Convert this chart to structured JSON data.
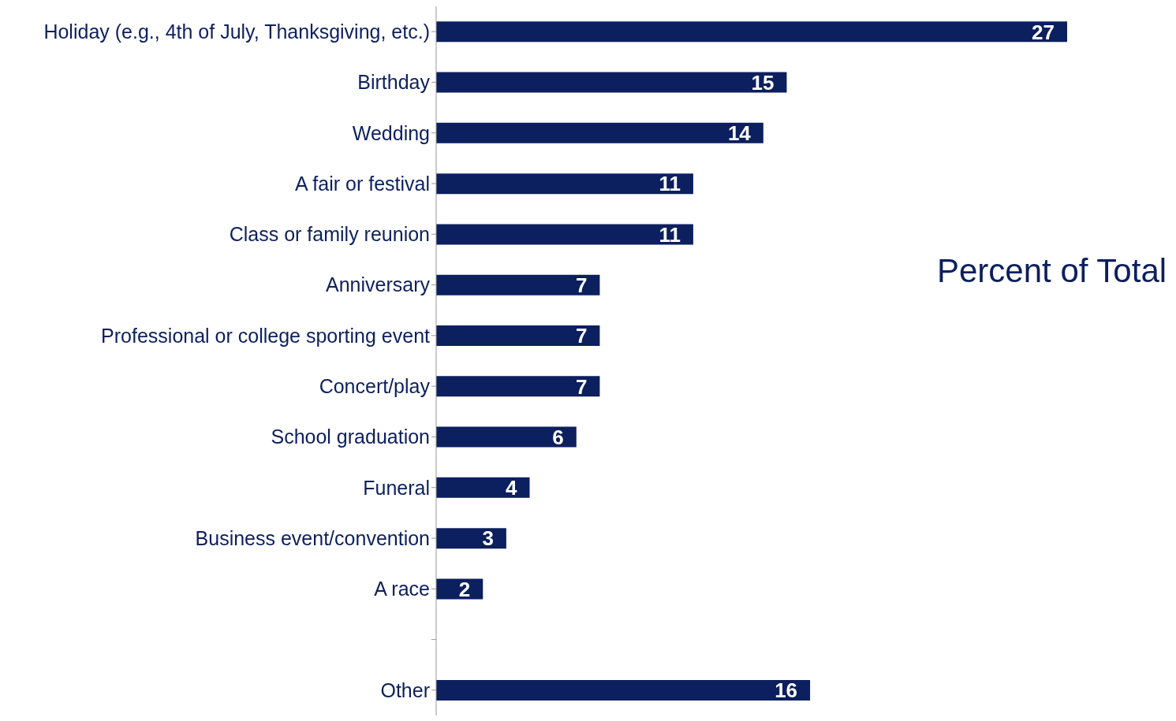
{
  "chart_data": {
    "type": "bar",
    "orientation": "horizontal",
    "title": "Percent of Total",
    "categories": [
      "Holiday (e.g., 4th of July, Thanksgiving, etc.)",
      "Birthday",
      "Wedding",
      "A fair or festival",
      "Class or family reunion",
      "Anniversary",
      "Professional or college sporting event",
      "Concert/play",
      "School graduation",
      "Funeral",
      "Business event/convention",
      "A race",
      null,
      "Other"
    ],
    "values": [
      27,
      15,
      14,
      11,
      11,
      7,
      7,
      7,
      6,
      4,
      3,
      2,
      null,
      16
    ],
    "color": "#0c1f5e",
    "data_labels": true,
    "grid": false
  }
}
